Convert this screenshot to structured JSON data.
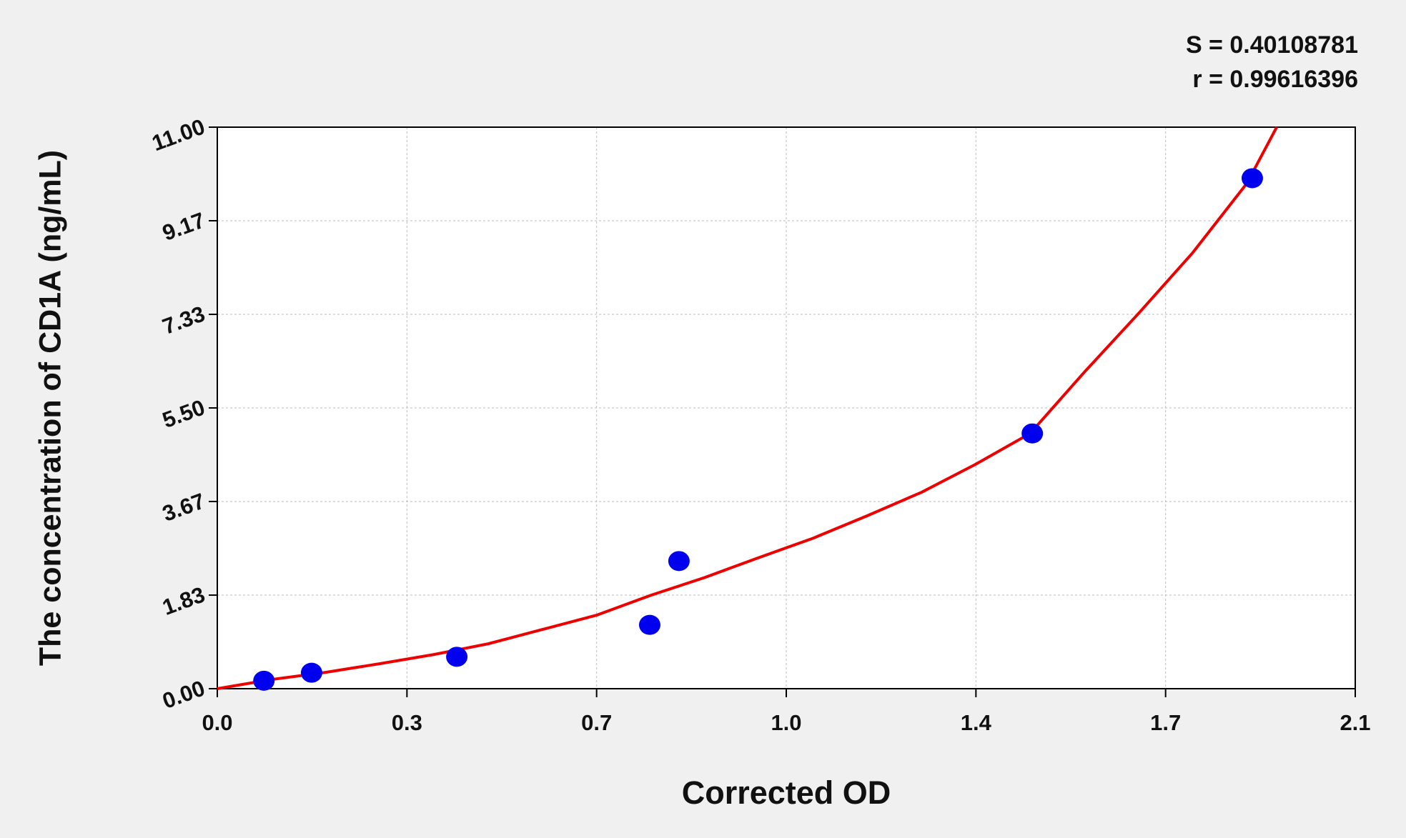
{
  "chart_data": {
    "type": "scatter",
    "annotations": [
      "S = 0.40108781",
      "r = 0.99616396"
    ],
    "x_label": "Corrected OD",
    "y_label": "The concentration of CD1A (ng/mL)",
    "xlim": [
      0,
      2.1
    ],
    "xticks": [
      {
        "value": 0,
        "label": "0.0"
      },
      {
        "value": 0.35,
        "label": "0.3"
      },
      {
        "value": 0.7,
        "label": "0.7"
      },
      {
        "value": 1.05,
        "label": "1.0"
      },
      {
        "value": 1.4,
        "label": "1.4"
      },
      {
        "value": 1.75,
        "label": "1.7"
      },
      {
        "value": 2.1,
        "label": "2.1"
      }
    ],
    "ylim": [
      0,
      11
    ],
    "yticks": [
      {
        "value": 0,
        "label": "0.00"
      },
      {
        "value": 1.833,
        "label": "1.83"
      },
      {
        "value": 3.667,
        "label": "3.67"
      },
      {
        "value": 5.5,
        "label": "5.50"
      },
      {
        "value": 7.333,
        "label": "7.33"
      },
      {
        "value": 9.167,
        "label": "9.17"
      },
      {
        "value": 11,
        "label": "11.00"
      }
    ],
    "grid": true,
    "series": [
      {
        "type": "scatter",
        "color": "#0000ee",
        "x": [
          0.086,
          0.174,
          0.442,
          0.798,
          0.852,
          1.504,
          1.91
        ],
        "y": [
          0.156,
          0.313,
          0.625,
          1.25,
          2.5,
          5,
          10
        ]
      },
      {
        "type": "line",
        "color": "#ee0000",
        "x": [
          0,
          0.1,
          0.2,
          0.3,
          0.4,
          0.5,
          0.6,
          0.7,
          0.8,
          0.9,
          1.0,
          1.1,
          1.2,
          1.3,
          1.4,
          1.5,
          1.6,
          1.7,
          1.8,
          1.9,
          1.955
        ],
        "y": [
          0,
          0.18,
          0.32,
          0.49,
          0.67,
          0.88,
          1.16,
          1.44,
          1.83,
          2.18,
          2.57,
          2.95,
          3.39,
          3.85,
          4.4,
          5.0,
          6.2,
          7.35,
          8.54,
          9.9,
          11.0
        ]
      }
    ]
  }
}
